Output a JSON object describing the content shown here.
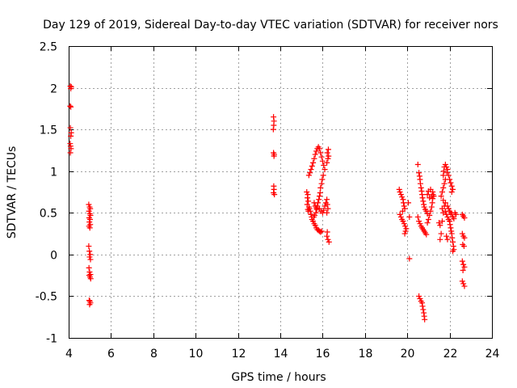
{
  "chart_data": {
    "type": "scatter",
    "title": "Day 129 of 2019, Sidereal Day-to-day VTEC variation (SDTVAR) for receiver nors",
    "xlabel": "GPS time / hours",
    "ylabel": "SDTVAR / TECUs",
    "xlim": [
      4,
      24
    ],
    "ylim": [
      -1,
      2.5
    ],
    "xticks": [
      4,
      6,
      8,
      10,
      12,
      14,
      16,
      18,
      20,
      22,
      24
    ],
    "yticks": [
      -1,
      -0.5,
      0,
      0.5,
      1,
      1.5,
      2,
      2.5
    ],
    "xtick_labels": [
      "4",
      "6",
      "8",
      "10",
      "12",
      "14",
      "16",
      "18",
      "20",
      "22",
      "24"
    ],
    "ytick_labels": [
      "-1",
      "-0.5",
      "0",
      "0.5",
      "1",
      "1.5",
      "2",
      "2.5"
    ],
    "grid": true,
    "marker": "+",
    "marker_color": "#ff0000",
    "series": [
      {
        "name": "SDTVAR",
        "points": [
          [
            4.08,
            2.02
          ],
          [
            4.1,
            1.99
          ],
          [
            4.12,
            2.01
          ],
          [
            4.07,
            1.78
          ],
          [
            4.1,
            1.77
          ],
          [
            4.08,
            1.52
          ],
          [
            4.12,
            1.46
          ],
          [
            4.1,
            1.42
          ],
          [
            4.07,
            1.33
          ],
          [
            4.09,
            1.3
          ],
          [
            4.11,
            1.27
          ],
          [
            4.08,
            1.22
          ],
          [
            4.95,
            0.6
          ],
          [
            4.99,
            0.57
          ],
          [
            5.02,
            0.55
          ],
          [
            4.96,
            0.52
          ],
          [
            5.0,
            0.49
          ],
          [
            5.03,
            0.47
          ],
          [
            4.97,
            0.44
          ],
          [
            5.01,
            0.42
          ],
          [
            4.98,
            0.39
          ],
          [
            5.02,
            0.36
          ],
          [
            4.96,
            0.34
          ],
          [
            5.0,
            0.32
          ],
          [
            4.95,
            0.1
          ],
          [
            4.98,
            0.04
          ],
          [
            5.02,
            0.0
          ],
          [
            4.99,
            -0.03
          ],
          [
            5.03,
            -0.06
          ],
          [
            4.96,
            -0.16
          ],
          [
            4.99,
            -0.21
          ],
          [
            5.03,
            -0.24
          ],
          [
            4.97,
            -0.25
          ],
          [
            5.01,
            -0.27
          ],
          [
            5.04,
            -0.29
          ],
          [
            4.97,
            -0.55
          ],
          [
            5.0,
            -0.56
          ],
          [
            5.03,
            -0.58
          ],
          [
            4.99,
            -0.6
          ],
          [
            13.68,
            1.65
          ],
          [
            13.7,
            1.6
          ],
          [
            13.69,
            1.55
          ],
          [
            13.67,
            1.5
          ],
          [
            13.68,
            1.22
          ],
          [
            13.71,
            1.2
          ],
          [
            13.7,
            1.18
          ],
          [
            13.69,
            0.82
          ],
          [
            13.7,
            0.78
          ],
          [
            13.68,
            0.74
          ],
          [
            13.72,
            0.72
          ],
          [
            15.25,
            0.75
          ],
          [
            15.3,
            0.72
          ],
          [
            15.28,
            0.68
          ],
          [
            15.32,
            0.64
          ],
          [
            15.27,
            0.6
          ],
          [
            15.35,
            0.57
          ],
          [
            15.3,
            0.54
          ],
          [
            15.33,
            0.52
          ],
          [
            15.38,
            0.55
          ],
          [
            15.42,
            0.52
          ],
          [
            15.45,
            0.48
          ],
          [
            15.48,
            0.45
          ],
          [
            15.5,
            0.42
          ],
          [
            15.55,
            0.4
          ],
          [
            15.6,
            0.37
          ],
          [
            15.65,
            0.35
          ],
          [
            15.7,
            0.32
          ],
          [
            15.75,
            0.3
          ],
          [
            15.8,
            0.29
          ],
          [
            15.85,
            0.28
          ],
          [
            15.9,
            0.27
          ],
          [
            15.95,
            0.28
          ],
          [
            15.35,
            0.95
          ],
          [
            15.4,
            0.98
          ],
          [
            15.45,
            1.02
          ],
          [
            15.5,
            1.06
          ],
          [
            15.55,
            1.1
          ],
          [
            15.6,
            1.15
          ],
          [
            15.65,
            1.2
          ],
          [
            15.7,
            1.24
          ],
          [
            15.75,
            1.27
          ],
          [
            15.8,
            1.29
          ],
          [
            15.85,
            1.27
          ],
          [
            15.9,
            1.22
          ],
          [
            15.95,
            1.17
          ],
          [
            16.0,
            1.12
          ],
          [
            16.05,
            1.07
          ],
          [
            16.1,
            1.02
          ],
          [
            16.03,
            0.95
          ],
          [
            15.98,
            0.9
          ],
          [
            15.95,
            0.85
          ],
          [
            15.9,
            0.8
          ],
          [
            15.88,
            0.74
          ],
          [
            15.85,
            0.7
          ],
          [
            15.82,
            0.66
          ],
          [
            15.78,
            0.62
          ],
          [
            15.75,
            0.58
          ],
          [
            15.6,
            0.62
          ],
          [
            15.65,
            0.58
          ],
          [
            15.7,
            0.56
          ],
          [
            15.72,
            0.54
          ],
          [
            15.68,
            0.5
          ],
          [
            15.62,
            0.47
          ],
          [
            15.58,
            0.45
          ],
          [
            15.85,
            0.55
          ],
          [
            15.92,
            0.52
          ],
          [
            16.0,
            0.5
          ],
          [
            16.05,
            0.53
          ],
          [
            16.1,
            0.58
          ],
          [
            16.15,
            0.62
          ],
          [
            16.2,
            0.66
          ],
          [
            16.22,
            0.6
          ],
          [
            16.25,
            0.55
          ],
          [
            16.2,
            0.5
          ],
          [
            16.2,
            1.1
          ],
          [
            16.25,
            1.15
          ],
          [
            16.28,
            1.18
          ],
          [
            16.22,
            1.22
          ],
          [
            16.27,
            1.26
          ],
          [
            16.2,
            0.22
          ],
          [
            16.25,
            0.18
          ],
          [
            16.3,
            0.15
          ],
          [
            16.22,
            0.27
          ],
          [
            19.62,
            0.78
          ],
          [
            19.65,
            0.75
          ],
          [
            19.7,
            0.72
          ],
          [
            19.75,
            0.69
          ],
          [
            19.8,
            0.66
          ],
          [
            19.82,
            0.62
          ],
          [
            19.85,
            0.58
          ],
          [
            19.88,
            0.55
          ],
          [
            19.78,
            0.52
          ],
          [
            19.65,
            0.48
          ],
          [
            19.7,
            0.45
          ],
          [
            19.75,
            0.42
          ],
          [
            19.8,
            0.4
          ],
          [
            19.85,
            0.37
          ],
          [
            19.9,
            0.34
          ],
          [
            19.95,
            0.31
          ],
          [
            19.92,
            0.28
          ],
          [
            19.88,
            0.25
          ],
          [
            20.1,
            0.45
          ],
          [
            20.05,
            0.62
          ],
          [
            20.1,
            -0.05
          ],
          [
            20.5,
            1.08
          ],
          [
            20.55,
            0.98
          ],
          [
            20.58,
            0.94
          ],
          [
            20.6,
            0.9
          ],
          [
            20.62,
            0.85
          ],
          [
            20.65,
            0.8
          ],
          [
            20.68,
            0.76
          ],
          [
            20.7,
            0.72
          ],
          [
            20.72,
            0.68
          ],
          [
            20.75,
            0.64
          ],
          [
            20.78,
            0.6
          ],
          [
            20.8,
            0.57
          ],
          [
            20.85,
            0.54
          ],
          [
            20.9,
            0.52
          ],
          [
            20.95,
            0.49
          ],
          [
            20.5,
            0.45
          ],
          [
            20.55,
            0.4
          ],
          [
            20.6,
            0.37
          ],
          [
            20.65,
            0.34
          ],
          [
            20.7,
            0.32
          ],
          [
            20.75,
            0.3
          ],
          [
            20.8,
            0.28
          ],
          [
            20.85,
            0.26
          ],
          [
            20.9,
            0.24
          ],
          [
            20.95,
            0.38
          ],
          [
            21.0,
            0.42
          ],
          [
            21.05,
            0.47
          ],
          [
            21.1,
            0.52
          ],
          [
            21.15,
            0.57
          ],
          [
            21.18,
            0.62
          ],
          [
            21.2,
            0.67
          ],
          [
            21.22,
            0.72
          ],
          [
            21.15,
            0.7
          ],
          [
            21.05,
            0.68
          ],
          [
            20.95,
            0.72
          ],
          [
            21.0,
            0.76
          ],
          [
            21.1,
            0.78
          ],
          [
            21.2,
            0.75
          ],
          [
            21.25,
            0.7
          ],
          [
            20.55,
            -0.5
          ],
          [
            20.6,
            -0.53
          ],
          [
            20.65,
            -0.56
          ],
          [
            20.7,
            -0.58
          ],
          [
            20.72,
            -0.62
          ],
          [
            20.75,
            -0.66
          ],
          [
            20.78,
            -0.7
          ],
          [
            20.8,
            -0.74
          ],
          [
            20.82,
            -0.78
          ],
          [
            21.5,
            0.38
          ],
          [
            21.55,
            0.35
          ],
          [
            21.6,
            0.25
          ],
          [
            21.55,
            0.18
          ],
          [
            21.65,
            0.4
          ],
          [
            21.7,
            0.5
          ],
          [
            21.65,
            0.55
          ],
          [
            21.75,
            0.58
          ],
          [
            21.8,
            0.62
          ],
          [
            21.7,
            0.65
          ],
          [
            21.6,
            0.7
          ],
          [
            21.65,
            0.75
          ],
          [
            21.7,
            0.8
          ],
          [
            21.75,
            0.85
          ],
          [
            21.8,
            0.9
          ],
          [
            21.7,
            0.95
          ],
          [
            21.72,
            1.0
          ],
          [
            21.75,
            1.05
          ],
          [
            21.8,
            1.08
          ],
          [
            21.85,
            1.05
          ],
          [
            21.9,
            1.02
          ],
          [
            21.88,
            0.98
          ],
          [
            21.95,
            0.95
          ],
          [
            22.0,
            0.9
          ],
          [
            22.05,
            0.86
          ],
          [
            22.1,
            0.82
          ],
          [
            22.15,
            0.78
          ],
          [
            22.1,
            0.75
          ],
          [
            21.8,
            0.52
          ],
          [
            21.85,
            0.48
          ],
          [
            21.9,
            0.45
          ],
          [
            21.95,
            0.42
          ],
          [
            22.0,
            0.4
          ],
          [
            22.02,
            0.36
          ],
          [
            22.05,
            0.32
          ],
          [
            22.08,
            0.28
          ],
          [
            22.1,
            0.25
          ],
          [
            22.12,
            0.2
          ],
          [
            22.15,
            0.15
          ],
          [
            22.18,
            0.1
          ],
          [
            22.2,
            0.06
          ],
          [
            22.15,
            0.04
          ],
          [
            21.9,
            0.58
          ],
          [
            21.95,
            0.55
          ],
          [
            22.0,
            0.52
          ],
          [
            22.05,
            0.5
          ],
          [
            22.1,
            0.48
          ],
          [
            22.15,
            0.45
          ],
          [
            22.2,
            0.43
          ],
          [
            22.25,
            0.5
          ],
          [
            22.3,
            0.48
          ],
          [
            21.85,
            0.22
          ],
          [
            21.9,
            0.18
          ],
          [
            22.6,
            0.48
          ],
          [
            22.65,
            0.46
          ],
          [
            22.7,
            0.44
          ],
          [
            22.6,
            0.25
          ],
          [
            22.65,
            0.22
          ],
          [
            22.7,
            0.2
          ],
          [
            22.62,
            0.12
          ],
          [
            22.68,
            0.1
          ],
          [
            22.6,
            -0.08
          ],
          [
            22.65,
            -0.12
          ],
          [
            22.7,
            -0.15
          ],
          [
            22.63,
            -0.19
          ],
          [
            22.6,
            -0.32
          ],
          [
            22.65,
            -0.35
          ],
          [
            22.7,
            -0.38
          ]
        ]
      }
    ]
  }
}
